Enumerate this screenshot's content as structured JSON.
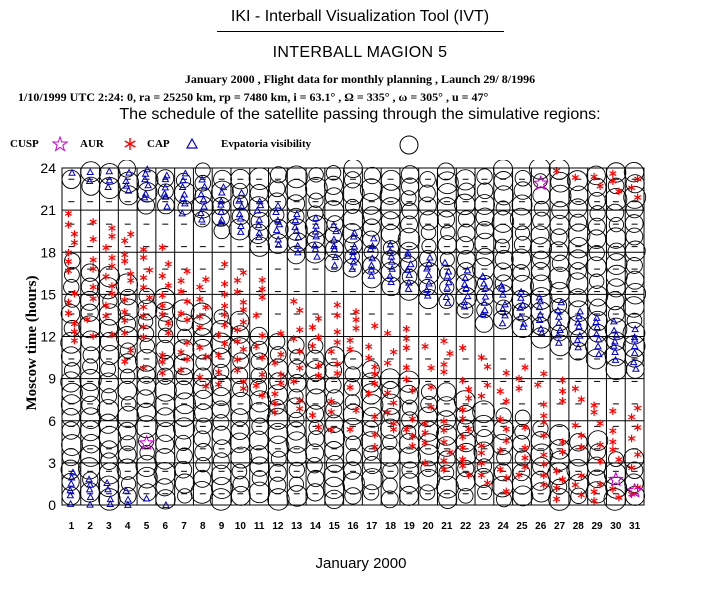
{
  "header": {
    "app_title": "IKI - Interball Visualization Tool (IVT)",
    "magion_title": "INTERBALL MAGION 5",
    "flight_line": "January 2000 ,  Flight data for monthly planning ,   Launch 29/ 8/1996",
    "orbit_line": "1/10/1999 UTC  2:24: 0, ra =  25250 km, rp =   7480 km, i = 63.1° , Ω = 335° , ω = 305° , u =  47°",
    "schedule_line": "The schedule of the satellite passing through the simulative regions:"
  },
  "legend": {
    "cusp_label": "CUSP",
    "aur_label": "AUR",
    "cap_label": "CAP",
    "evpatoria_label": "Evpatoria visibility"
  },
  "colors": {
    "cusp": "#cc00cc",
    "aur": "#ff0000",
    "cap": "#0000cc",
    "evpatoria": "#000000"
  },
  "chart_data": {
    "type": "scatter",
    "title": "The schedule of the satellite passing through the simulative regions:",
    "xlabel": "January 2000",
    "ylabel": "Moscow time (hours)",
    "xlim": [
      1,
      31
    ],
    "ylim": [
      0,
      24
    ],
    "x_ticks": [
      "1",
      "2",
      "3",
      "4",
      "5",
      "6",
      "7",
      "8",
      "9",
      "10",
      "11",
      "12",
      "13",
      "14",
      "15",
      "16",
      "17",
      "18",
      "19",
      "20",
      "21",
      "22",
      "23",
      "24",
      "25",
      "26",
      "27",
      "28",
      "29",
      "30",
      "31"
    ],
    "y_ticks": [
      "0",
      "3",
      "6",
      "9",
      "12",
      "15",
      "18",
      "21",
      "24"
    ],
    "grid": true,
    "evpatoria_windows_note": "Evpatoria visibility circles occur roughly every 0.8 h; a gap of about 5-6 h drifts from ~17-23 h on Jan 1 downward to ~3-8 h by Jan 31 (values estimated).",
    "aur_note": "AUR (red asterisks) columns roughly every 0.8 h, densest around the Evpatoria gap (values estimated).",
    "cap_note": "CAP (blue triangles) appears in short clusters near the AUR columns (values estimated).",
    "cusp_points": [
      {
        "day": 5,
        "hour": 4.4
      },
      {
        "day": 26,
        "hour": 22.9
      },
      {
        "day": 30,
        "hour": 1.8
      },
      {
        "day": 31,
        "hour": 1.0
      }
    ]
  }
}
